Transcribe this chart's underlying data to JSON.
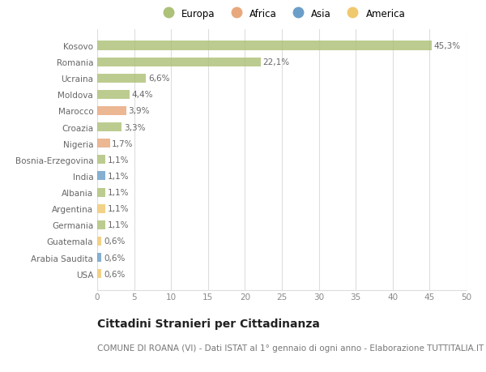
{
  "countries": [
    "Kosovo",
    "Romania",
    "Ucraina",
    "Moldova",
    "Marocco",
    "Croazia",
    "Nigeria",
    "Bosnia-Erzegovina",
    "India",
    "Albania",
    "Argentina",
    "Germania",
    "Guatemala",
    "Arabia Saudita",
    "USA"
  ],
  "values": [
    45.3,
    22.1,
    6.6,
    4.4,
    3.9,
    3.3,
    1.7,
    1.1,
    1.1,
    1.1,
    1.1,
    1.1,
    0.6,
    0.6,
    0.6
  ],
  "labels": [
    "45,3%",
    "22,1%",
    "6,6%",
    "4,4%",
    "3,9%",
    "3,3%",
    "1,7%",
    "1,1%",
    "1,1%",
    "1,1%",
    "1,1%",
    "1,1%",
    "0,6%",
    "0,6%",
    "0,6%"
  ],
  "continents": [
    "Europa",
    "Europa",
    "Europa",
    "Europa",
    "Africa",
    "Europa",
    "Africa",
    "Europa",
    "Asia",
    "Europa",
    "America",
    "Europa",
    "America",
    "Asia",
    "America"
  ],
  "colors": {
    "Europa": "#adc178",
    "Africa": "#e8a87c",
    "Asia": "#6b9ec9",
    "America": "#f0c96e"
  },
  "legend_order": [
    "Europa",
    "Africa",
    "Asia",
    "America"
  ],
  "legend_colors": [
    "#adc178",
    "#e8a87c",
    "#6b9ec9",
    "#f0c96e"
  ],
  "title": "Cittadini Stranieri per Cittadinanza",
  "subtitle": "COMUNE DI ROANA (VI) - Dati ISTAT al 1° gennaio di ogni anno - Elaborazione TUTTITALIA.IT",
  "xlim": [
    0,
    50
  ],
  "xticks": [
    0,
    5,
    10,
    15,
    20,
    25,
    30,
    35,
    40,
    45,
    50
  ],
  "background_color": "#ffffff",
  "grid_color": "#dddddd",
  "bar_height": 0.55,
  "title_fontsize": 10,
  "subtitle_fontsize": 7.5,
  "label_fontsize": 7.5,
  "tick_fontsize": 7.5,
  "legend_fontsize": 8.5
}
